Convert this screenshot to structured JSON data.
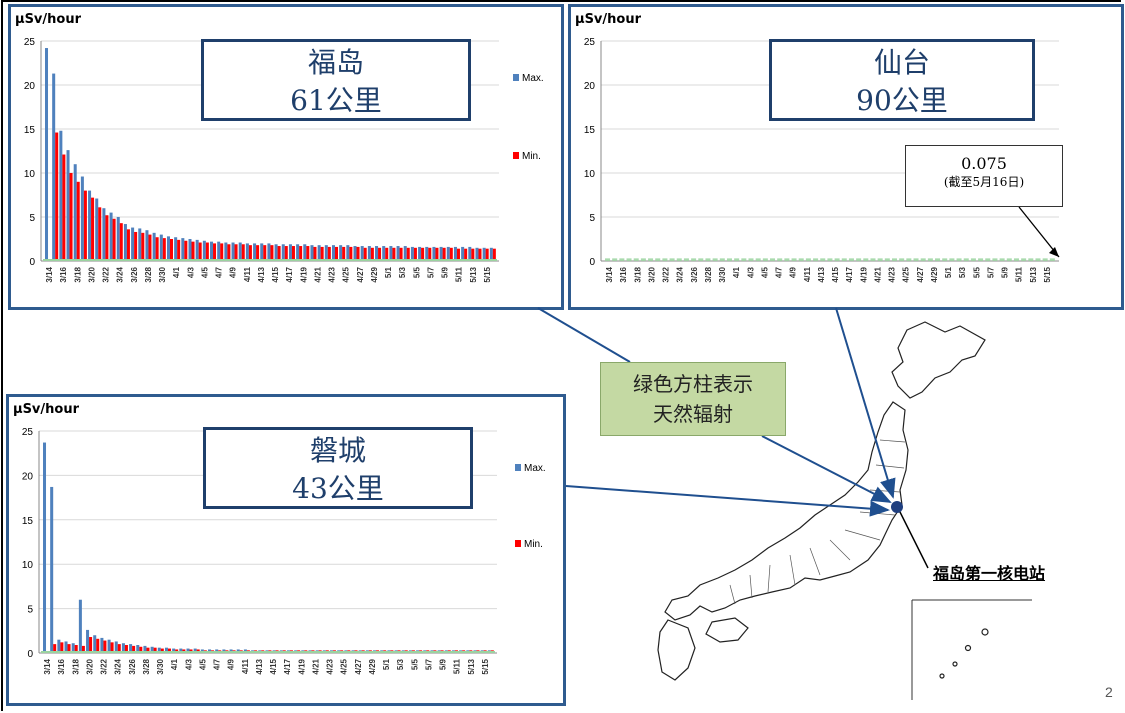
{
  "page_number": "2",
  "green_note": {
    "line1": "绿色方柱表示",
    "line2": "天然辐射"
  },
  "plant_label": "福岛第一核电站",
  "colors": {
    "max": "#4f81bd",
    "min": "#ff0000",
    "natural": "#9bd3a0",
    "frame": "#2f5b8f"
  },
  "chart_data": [
    {
      "type": "bar",
      "panel": "fukushima",
      "place_name": "福岛",
      "distance": "61公里",
      "ylabel": "μSv/hour",
      "ylim": [
        0,
        25
      ],
      "yticks": [
        "0",
        "5",
        "10",
        "15",
        "20",
        "25"
      ],
      "legend": [
        "Max.",
        "Min."
      ],
      "x_labels": [
        "3/14",
        "3/16",
        "3/18",
        "3/20",
        "3/22",
        "3/24",
        "3/26",
        "3/28",
        "3/30",
        "4/1",
        "4/3",
        "4/5",
        "4/7",
        "4/9",
        "4/11",
        "4/13",
        "4/15",
        "4/17",
        "4/19",
        "4/21",
        "4/23",
        "4/25",
        "4/27",
        "4/29",
        "5/1",
        "5/3",
        "5/5",
        "5/7",
        "5/9",
        "5/11",
        "5/13",
        "5/15"
      ],
      "series": [
        {
          "name": "Max.",
          "values": [
            24.2,
            21.3,
            14.8,
            12.6,
            11.0,
            9.6,
            8.0,
            7.1,
            6.0,
            5.5,
            5.0,
            4.2,
            3.8,
            3.7,
            3.5,
            3.2,
            3.0,
            2.8,
            2.7,
            2.6,
            2.5,
            2.4,
            2.3,
            2.2,
            2.2,
            2.1,
            2.1,
            2.1,
            2.0,
            2.0,
            2.0,
            2.0,
            1.9,
            1.9,
            1.9,
            1.9,
            1.9,
            1.8,
            1.8,
            1.8,
            1.8,
            1.8,
            1.8,
            1.7,
            1.7,
            1.7,
            1.7,
            1.7,
            1.7,
            1.7,
            1.7,
            1.6,
            1.6,
            1.6,
            1.6,
            1.6,
            1.6,
            1.6,
            1.6,
            1.6,
            1.5,
            1.5,
            1.5
          ]
        },
        {
          "name": "Min.",
          "values": [
            0,
            14.6,
            12.1,
            10.0,
            9.0,
            8.0,
            7.2,
            6.1,
            5.2,
            4.8,
            4.3,
            3.6,
            3.3,
            3.2,
            3.0,
            2.7,
            2.6,
            2.5,
            2.4,
            2.3,
            2.2,
            2.1,
            2.1,
            2.0,
            2.0,
            1.9,
            1.9,
            1.9,
            1.8,
            1.8,
            1.8,
            1.8,
            1.7,
            1.7,
            1.7,
            1.7,
            1.7,
            1.6,
            1.6,
            1.6,
            1.6,
            1.6,
            1.6,
            1.6,
            1.5,
            1.5,
            1.5,
            1.5,
            1.5,
            1.5,
            1.5,
            1.5,
            1.5,
            1.5,
            1.5,
            1.5,
            1.5,
            1.4,
            1.4,
            1.4,
            1.4,
            1.4,
            1.4
          ]
        }
      ]
    },
    {
      "type": "bar",
      "panel": "sendai",
      "place_name": "仙台",
      "distance": "90公里",
      "ylabel": "μSv/hour",
      "ylim": [
        0,
        25
      ],
      "yticks": [
        "0",
        "5",
        "10",
        "15",
        "20",
        "25"
      ],
      "x_labels": [
        "3/14",
        "3/16",
        "3/18",
        "3/20",
        "3/22",
        "3/24",
        "3/26",
        "3/28",
        "3/30",
        "4/1",
        "4/3",
        "4/5",
        "4/7",
        "4/9",
        "4/11",
        "4/13",
        "4/15",
        "4/17",
        "4/19",
        "4/21",
        "4/23",
        "4/25",
        "4/27",
        "4/29",
        "5/1",
        "5/3",
        "5/5",
        "5/7",
        "5/9",
        "5/11",
        "5/13",
        "5/15"
      ],
      "annotation": {
        "value": "0.075",
        "note": "(截至5月16日)"
      },
      "series": [
        {
          "name": "natural",
          "values": [
            0.3,
            0.3,
            0.3,
            0.3,
            0.3,
            0.3,
            0.3,
            0.3,
            0.3,
            0.3,
            0.3,
            0.3,
            0.3,
            0.3,
            0.3,
            0.3,
            0.3,
            0.3,
            0.3,
            0.3,
            0.3,
            0.3,
            0.3,
            0.3,
            0.3,
            0.3,
            0.3,
            0.3,
            0.3,
            0.3,
            0.3,
            0.3,
            0.3,
            0.3,
            0.3,
            0.3,
            0.3,
            0.3,
            0.3,
            0.3,
            0.3,
            0.3,
            0.3,
            0.3,
            0.3,
            0.3,
            0.3,
            0.3,
            0.3,
            0.3,
            0.3,
            0.3,
            0.3,
            0.3,
            0.3,
            0.3,
            0.3,
            0.3,
            0.3,
            0.3,
            0.3,
            0.3,
            0.3
          ]
        }
      ]
    },
    {
      "type": "bar",
      "panel": "iwaki",
      "place_name": "磐城",
      "distance": "43公里",
      "ylabel": "μSv/hour",
      "ylim": [
        0,
        25
      ],
      "yticks": [
        "0",
        "5",
        "10",
        "15",
        "20",
        "25"
      ],
      "legend": [
        "Max.",
        "Min."
      ],
      "x_labels": [
        "3/14",
        "3/16",
        "3/18",
        "3/20",
        "3/22",
        "3/24",
        "3/26",
        "3/28",
        "3/30",
        "4/1",
        "4/3",
        "4/5",
        "4/7",
        "4/9",
        "4/11",
        "4/13",
        "4/15",
        "4/17",
        "4/19",
        "4/21",
        "4/23",
        "4/25",
        "4/27",
        "4/29",
        "5/1",
        "5/3",
        "5/5",
        "5/7",
        "5/9",
        "5/11",
        "5/13",
        "5/15"
      ],
      "series": [
        {
          "name": "Max.",
          "values": [
            23.7,
            18.7,
            1.5,
            1.3,
            1.1,
            6.0,
            2.6,
            2.0,
            1.7,
            1.5,
            1.3,
            1.1,
            1.0,
            0.9,
            0.8,
            0.7,
            0.6,
            0.6,
            0.5,
            0.5,
            0.5,
            0.5,
            0.4,
            0.4,
            0.4,
            0.4,
            0.4,
            0.4,
            0.4,
            0.3,
            0.3,
            0.3,
            0.3,
            0.3,
            0.3,
            0.3,
            0.3,
            0.3,
            0.3,
            0.3,
            0.3,
            0.3,
            0.3,
            0.3,
            0.3,
            0.3,
            0.3,
            0.3,
            0.3,
            0.3,
            0.3,
            0.3,
            0.3,
            0.3,
            0.3,
            0.3,
            0.3,
            0.3,
            0.3,
            0.3,
            0.3,
            0.3,
            0.3
          ]
        },
        {
          "name": "Min.",
          "values": [
            0,
            1.0,
            1.2,
            1.0,
            0.9,
            0.8,
            1.8,
            1.6,
            1.4,
            1.2,
            1.0,
            0.9,
            0.8,
            0.7,
            0.6,
            0.6,
            0.5,
            0.5,
            0.4,
            0.4,
            0.4,
            0.4,
            0.3,
            0.3,
            0.3,
            0.3,
            0.3,
            0.3,
            0.3,
            0.3,
            0.3,
            0.3,
            0.3,
            0.3,
            0.3,
            0.3,
            0.3,
            0.3,
            0.3,
            0.3,
            0.3,
            0.3,
            0.3,
            0.3,
            0.3,
            0.3,
            0.3,
            0.3,
            0.3,
            0.3,
            0.3,
            0.3,
            0.3,
            0.3,
            0.3,
            0.3,
            0.3,
            0.3,
            0.3,
            0.3,
            0.3,
            0.3,
            0.3
          ]
        }
      ]
    }
  ]
}
